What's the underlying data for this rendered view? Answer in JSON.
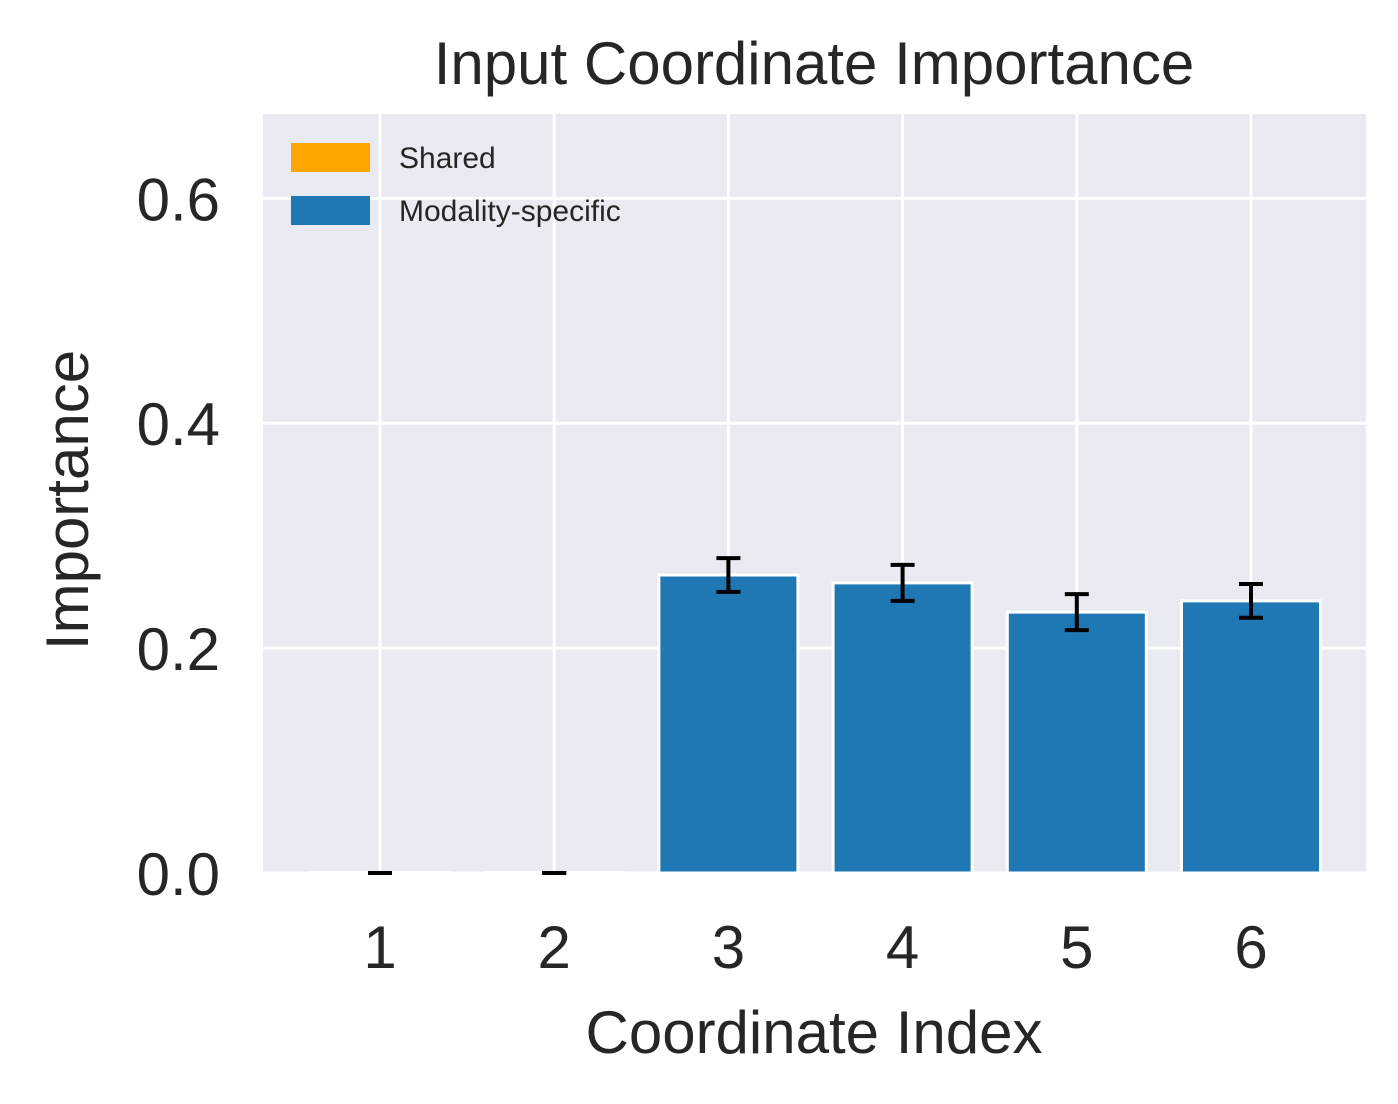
{
  "chart_data": {
    "type": "bar",
    "title": "Input Coordinate Importance",
    "xlabel": "Coordinate Index",
    "ylabel": "Importance",
    "categories": [
      "1",
      "2",
      "3",
      "4",
      "5",
      "6"
    ],
    "ylim": [
      0,
      0.675
    ],
    "yticks": [
      0.0,
      0.2,
      0.4,
      0.6
    ],
    "ytick_labels": [
      "0.0",
      "0.2",
      "0.4",
      "0.6"
    ],
    "grid": true,
    "legend_position": "top-left",
    "series": [
      {
        "name": "Shared",
        "color": "#FFA500",
        "values": [
          0.0,
          0.0,
          null,
          null,
          null,
          null
        ],
        "errors": [
          0.0,
          0.0,
          null,
          null,
          null,
          null
        ]
      },
      {
        "name": "Modality-specific",
        "color": "#1F77B4",
        "values": [
          null,
          null,
          0.265,
          0.258,
          0.232,
          0.242
        ],
        "errors": [
          null,
          null,
          0.015,
          0.016,
          0.016,
          0.015
        ]
      }
    ],
    "background_color": "#EAEAF2",
    "grid_color": "#FFFFFF",
    "error_bar_color": "#000000"
  }
}
